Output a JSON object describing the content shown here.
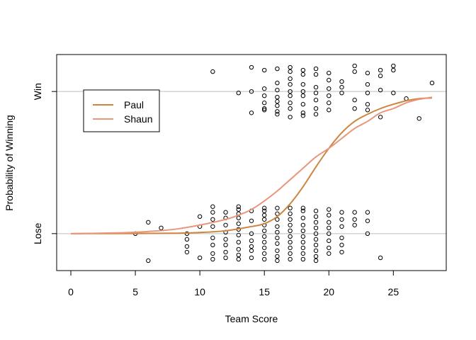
{
  "chart_data": {
    "type": "scatter",
    "title": "",
    "xlabel": "Team Score",
    "ylabel": "Probability of Winning",
    "xlim": [
      -1.1,
      29.1
    ],
    "ylim": [
      -0.26,
      1.26
    ],
    "x_ticks": [
      0,
      5,
      10,
      15,
      20,
      25
    ],
    "y_ticks": [
      {
        "value": 0,
        "label": "Lose"
      },
      {
        "value": 1,
        "label": "Win"
      }
    ],
    "reference_lines": [
      0,
      1
    ],
    "reference_line_color": "#bebebe",
    "legend": {
      "position": "top-left"
    },
    "series": [
      {
        "name": "Paul",
        "kind": "line",
        "color": "#cd853f",
        "points": [
          [
            0,
            0.0
          ],
          [
            5,
            0.001
          ],
          [
            8,
            0.003
          ],
          [
            10,
            0.008
          ],
          [
            12,
            0.02
          ],
          [
            14,
            0.05
          ],
          [
            15,
            0.07
          ],
          [
            16,
            0.12
          ],
          [
            17,
            0.21
          ],
          [
            18,
            0.33
          ],
          [
            19,
            0.47
          ],
          [
            20,
            0.6
          ],
          [
            21,
            0.71
          ],
          [
            22,
            0.79
          ],
          [
            23,
            0.84
          ],
          [
            24,
            0.88
          ],
          [
            25,
            0.91
          ],
          [
            26,
            0.935
          ],
          [
            27,
            0.95
          ],
          [
            28,
            0.955
          ]
        ]
      },
      {
        "name": "Shaun",
        "kind": "line",
        "color": "#e9967a",
        "points": [
          [
            0,
            0.0
          ],
          [
            4,
            0.006
          ],
          [
            6,
            0.015
          ],
          [
            8,
            0.03
          ],
          [
            10,
            0.06
          ],
          [
            12,
            0.1
          ],
          [
            13,
            0.13
          ],
          [
            14,
            0.17
          ],
          [
            15,
            0.23
          ],
          [
            16,
            0.3
          ],
          [
            17,
            0.38
          ],
          [
            18,
            0.46
          ],
          [
            19,
            0.54
          ],
          [
            20,
            0.6
          ],
          [
            21,
            0.67
          ],
          [
            22,
            0.74
          ],
          [
            23,
            0.79
          ],
          [
            24,
            0.85
          ],
          [
            25,
            0.88
          ],
          [
            26,
            0.92
          ],
          [
            27,
            0.945
          ],
          [
            28,
            0.96
          ]
        ]
      }
    ],
    "points_win": [
      [
        11,
        1.14
      ],
      [
        13,
        0.99
      ],
      [
        14,
        1.17
      ],
      [
        14,
        1.0
      ],
      [
        14,
        0.85
      ],
      [
        15,
        1.15
      ],
      [
        15,
        1.02
      ],
      [
        15,
        0.97
      ],
      [
        15,
        0.92
      ],
      [
        15,
        0.88
      ],
      [
        15,
        0.87
      ],
      [
        16,
        1.16
      ],
      [
        16,
        1.06
      ],
      [
        16,
        1.01
      ],
      [
        16,
        0.96
      ],
      [
        16,
        0.93
      ],
      [
        16,
        0.9
      ],
      [
        16,
        0.86
      ],
      [
        16,
        0.84
      ],
      [
        17,
        1.17
      ],
      [
        17,
        1.14
      ],
      [
        17,
        1.09
      ],
      [
        17,
        1.05
      ],
      [
        17,
        1.0
      ],
      [
        17,
        0.97
      ],
      [
        17,
        0.92
      ],
      [
        17,
        0.88
      ],
      [
        17,
        0.82
      ],
      [
        18,
        1.15
      ],
      [
        18,
        1.12
      ],
      [
        18,
        1.05
      ],
      [
        18,
        1.0
      ],
      [
        18,
        0.97
      ],
      [
        18,
        0.91
      ],
      [
        18,
        0.85
      ],
      [
        18,
        0.83
      ],
      [
        19,
        1.16
      ],
      [
        19,
        1.12
      ],
      [
        19,
        1.03
      ],
      [
        19,
        0.99
      ],
      [
        19,
        0.94
      ],
      [
        19,
        0.88
      ],
      [
        19,
        0.84
      ],
      [
        20,
        1.13
      ],
      [
        20,
        1.08
      ],
      [
        20,
        1.02
      ],
      [
        20,
        0.97
      ],
      [
        20,
        0.92
      ],
      [
        20,
        0.87
      ],
      [
        21,
        1.07
      ],
      [
        21,
        1.03
      ],
      [
        21,
        0.99
      ],
      [
        22,
        1.18
      ],
      [
        22,
        1.14
      ],
      [
        22,
        0.94
      ],
      [
        22,
        0.88
      ],
      [
        23,
        1.13
      ],
      [
        23,
        1.05
      ],
      [
        23,
        0.99
      ],
      [
        23,
        0.91
      ],
      [
        23,
        0.87
      ],
      [
        24,
        1.15
      ],
      [
        24,
        1.11
      ],
      [
        24,
        1.01
      ],
      [
        24,
        0.82
      ],
      [
        25,
        1.18
      ],
      [
        25,
        1.15
      ],
      [
        25,
        0.99
      ],
      [
        26,
        0.95
      ],
      [
        27,
        0.81
      ],
      [
        28,
        1.06
      ]
    ],
    "points_lose": [
      [
        5,
        0.0
      ],
      [
        6,
        0.08
      ],
      [
        6,
        -0.19
      ],
      [
        7,
        0.04
      ],
      [
        9,
        0.0
      ],
      [
        9,
        -0.04
      ],
      [
        9,
        -0.09
      ],
      [
        9,
        -0.13
      ],
      [
        10,
        0.12
      ],
      [
        10,
        0.05
      ],
      [
        10,
        -0.17
      ],
      [
        11,
        0.19
      ],
      [
        11,
        0.15
      ],
      [
        11,
        0.1
      ],
      [
        11,
        0.05
      ],
      [
        11,
        -0.03
      ],
      [
        11,
        -0.08
      ],
      [
        11,
        -0.14
      ],
      [
        11,
        -0.18
      ],
      [
        12,
        0.15
      ],
      [
        12,
        0.11
      ],
      [
        12,
        0.06
      ],
      [
        12,
        0.01
      ],
      [
        12,
        -0.04
      ],
      [
        12,
        -0.08
      ],
      [
        12,
        -0.13
      ],
      [
        12,
        -0.17
      ],
      [
        13,
        0.19
      ],
      [
        13,
        0.17
      ],
      [
        13,
        0.14
      ],
      [
        13,
        0.11
      ],
      [
        13,
        0.07
      ],
      [
        13,
        0.03
      ],
      [
        13,
        -0.01
      ],
      [
        13,
        -0.06
      ],
      [
        13,
        -0.11
      ],
      [
        13,
        -0.15
      ],
      [
        13,
        -0.18
      ],
      [
        14,
        0.16
      ],
      [
        14,
        0.09
      ],
      [
        14,
        0.0
      ],
      [
        14,
        -0.05
      ],
      [
        14,
        -0.09
      ],
      [
        14,
        -0.12
      ],
      [
        14,
        -0.17
      ],
      [
        15,
        0.18
      ],
      [
        15,
        0.16
      ],
      [
        15,
        0.13
      ],
      [
        15,
        0.1
      ],
      [
        15,
        0.06
      ],
      [
        15,
        0.02
      ],
      [
        15,
        -0.02
      ],
      [
        15,
        -0.06
      ],
      [
        15,
        -0.1
      ],
      [
        15,
        -0.14
      ],
      [
        15,
        -0.18
      ],
      [
        16,
        0.18
      ],
      [
        16,
        0.14
      ],
      [
        16,
        0.1
      ],
      [
        16,
        0.05
      ],
      [
        16,
        0.01
      ],
      [
        16,
        -0.03
      ],
      [
        16,
        -0.07
      ],
      [
        16,
        -0.12
      ],
      [
        16,
        -0.16
      ],
      [
        16,
        -0.19
      ],
      [
        17,
        0.18
      ],
      [
        17,
        0.14
      ],
      [
        17,
        0.1
      ],
      [
        17,
        0.06
      ],
      [
        17,
        0.02
      ],
      [
        17,
        -0.02
      ],
      [
        17,
        -0.06
      ],
      [
        17,
        -0.1
      ],
      [
        17,
        -0.14
      ],
      [
        17,
        -0.18
      ],
      [
        18,
        0.18
      ],
      [
        18,
        0.16
      ],
      [
        18,
        0.11
      ],
      [
        18,
        0.06
      ],
      [
        18,
        0.02
      ],
      [
        18,
        -0.02
      ],
      [
        18,
        -0.06
      ],
      [
        18,
        -0.1
      ],
      [
        18,
        -0.14
      ],
      [
        18,
        -0.18
      ],
      [
        19,
        0.16
      ],
      [
        19,
        0.12
      ],
      [
        19,
        0.08
      ],
      [
        19,
        0.04
      ],
      [
        19,
        0.0
      ],
      [
        19,
        -0.04
      ],
      [
        19,
        -0.08
      ],
      [
        19,
        -0.12
      ],
      [
        19,
        -0.16
      ],
      [
        19,
        -0.19
      ],
      [
        20,
        0.17
      ],
      [
        20,
        0.13
      ],
      [
        20,
        0.08
      ],
      [
        20,
        0.04
      ],
      [
        20,
        0.0
      ],
      [
        20,
        -0.05
      ],
      [
        20,
        -0.1
      ],
      [
        20,
        -0.14
      ],
      [
        21,
        0.15
      ],
      [
        21,
        0.1
      ],
      [
        21,
        0.05
      ],
      [
        21,
        -0.03
      ],
      [
        21,
        -0.08
      ],
      [
        21,
        -0.13
      ],
      [
        22,
        0.15
      ],
      [
        22,
        0.1
      ],
      [
        22,
        0.06
      ],
      [
        23,
        0.15
      ],
      [
        23,
        0.09
      ],
      [
        23,
        0.0
      ],
      [
        24,
        -0.17
      ]
    ]
  }
}
